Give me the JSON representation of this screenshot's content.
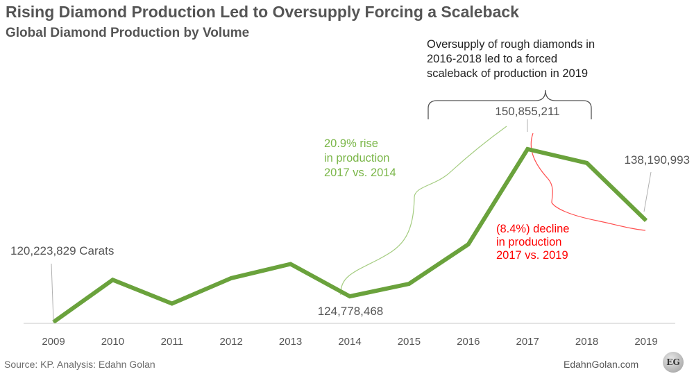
{
  "header": {
    "title": "Rising Diamond Production Led to Oversupply Forcing a Scaleback",
    "subtitle": "Global Diamond Production by Volume"
  },
  "footer": {
    "source": "Source: KP. Analysis: Edahn Golan",
    "site": "EdahnGolan.com",
    "logo_text": "EG"
  },
  "chart_data": {
    "type": "line",
    "x": [
      "2009",
      "2010",
      "2011",
      "2012",
      "2013",
      "2014",
      "2015",
      "2016",
      "2017",
      "2018",
      "2019"
    ],
    "series": [
      {
        "values": [
          120223829,
          127700000,
          123500000,
          128000000,
          130500000,
          124778468,
          127000000,
          134000000,
          150855211,
          148400000,
          138190993
        ]
      }
    ],
    "ylim": [
      120000000,
      156000000
    ],
    "grid": false,
    "line_color": "#6aa23c",
    "data_labels": [
      {
        "x": "2009",
        "text": "120,223,829 Carats"
      },
      {
        "x": "2014",
        "text": "124,778,468"
      },
      {
        "x": "2017",
        "text": "150,855,211"
      },
      {
        "x": "2019",
        "text": "138,190,993"
      }
    ],
    "annotations": {
      "rise": {
        "lines": [
          "20.9% rise",
          "in production",
          "2017 vs. 2014"
        ],
        "color": "#7ab648"
      },
      "decline": {
        "lines": [
          "(8.4%) decline",
          "in production",
          "2017 vs. 2019"
        ],
        "color": "#ff0000"
      },
      "oversupply": {
        "lines": [
          "Oversupply of rough diamonds in",
          "2016-2018 led to a forced",
          "scaleback of production in 2019"
        ],
        "color": "#222222"
      }
    }
  }
}
